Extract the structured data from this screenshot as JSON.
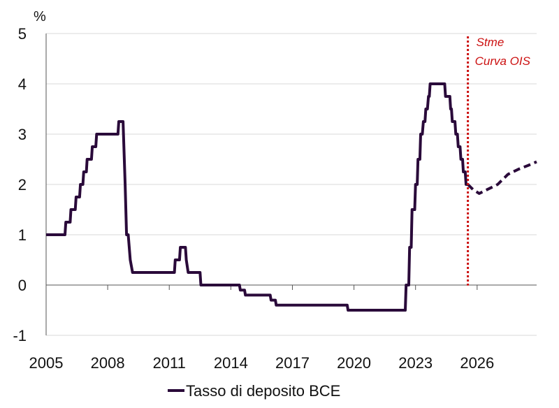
{
  "chart_data": {
    "type": "line",
    "unit_label": "%",
    "colors": {
      "series": "#2a0a3a",
      "forecast_line": "#cc1111",
      "annotation": "#cc1111",
      "grid": "#d9d9d9",
      "axis": "#555555"
    },
    "x_range": [
      2005,
      2028.9
    ],
    "ylim": [
      -1,
      5
    ],
    "grid": "horizontal",
    "x_ticks": [
      {
        "value": 2005,
        "label": "2005"
      },
      {
        "value": 2008,
        "label": "2008"
      },
      {
        "value": 2011,
        "label": "2011"
      },
      {
        "value": 2014,
        "label": "2014"
      },
      {
        "value": 2017,
        "label": "2017"
      },
      {
        "value": 2020,
        "label": "2020"
      },
      {
        "value": 2023,
        "label": "2023"
      },
      {
        "value": 2026,
        "label": "2026"
      }
    ],
    "y_ticks": [
      {
        "value": 5,
        "label": "5"
      },
      {
        "value": 4,
        "label": "4"
      },
      {
        "value": 3,
        "label": "3"
      },
      {
        "value": 2,
        "label": "2"
      },
      {
        "value": 1,
        "label": "1"
      },
      {
        "value": 0,
        "label": "0"
      },
      {
        "value": -1,
        "label": "-1"
      }
    ],
    "legend": {
      "position": "bottom",
      "label": "Tasso di deposito BCE"
    },
    "annotation": {
      "x": 2025.55,
      "lines": [
        "Stme",
        "Curva OIS"
      ]
    },
    "series": [
      {
        "name": "Tasso di deposito BCE",
        "style": "solid",
        "points": [
          [
            2005.0,
            1.0
          ],
          [
            2005.92,
            1.0
          ],
          [
            2005.96,
            1.25
          ],
          [
            2006.17,
            1.25
          ],
          [
            2006.21,
            1.5
          ],
          [
            2006.42,
            1.5
          ],
          [
            2006.46,
            1.75
          ],
          [
            2006.63,
            1.75
          ],
          [
            2006.67,
            2.0
          ],
          [
            2006.79,
            2.0
          ],
          [
            2006.83,
            2.25
          ],
          [
            2006.96,
            2.25
          ],
          [
            2007.0,
            2.5
          ],
          [
            2007.21,
            2.5
          ],
          [
            2007.25,
            2.75
          ],
          [
            2007.42,
            2.75
          ],
          [
            2007.46,
            3.0
          ],
          [
            2008.5,
            3.0
          ],
          [
            2008.54,
            3.25
          ],
          [
            2008.75,
            3.25
          ],
          [
            2008.85,
            2.0
          ],
          [
            2008.92,
            1.0
          ],
          [
            2009.0,
            1.0
          ],
          [
            2009.1,
            0.5
          ],
          [
            2009.21,
            0.25
          ],
          [
            2011.25,
            0.25
          ],
          [
            2011.29,
            0.5
          ],
          [
            2011.5,
            0.5
          ],
          [
            2011.54,
            0.75
          ],
          [
            2011.79,
            0.75
          ],
          [
            2011.83,
            0.5
          ],
          [
            2011.92,
            0.25
          ],
          [
            2012.0,
            0.25
          ],
          [
            2012.5,
            0.25
          ],
          [
            2012.54,
            0.0
          ],
          [
            2014.42,
            0.0
          ],
          [
            2014.46,
            -0.1
          ],
          [
            2014.67,
            -0.1
          ],
          [
            2014.71,
            -0.2
          ],
          [
            2015.92,
            -0.2
          ],
          [
            2015.96,
            -0.3
          ],
          [
            2016.17,
            -0.3
          ],
          [
            2016.21,
            -0.4
          ],
          [
            2019.67,
            -0.4
          ],
          [
            2019.71,
            -0.5
          ],
          [
            2022.5,
            -0.5
          ],
          [
            2022.54,
            0.0
          ],
          [
            2022.67,
            0.0
          ],
          [
            2022.71,
            0.75
          ],
          [
            2022.79,
            0.75
          ],
          [
            2022.83,
            1.5
          ],
          [
            2022.96,
            1.5
          ],
          [
            2023.0,
            2.0
          ],
          [
            2023.08,
            2.0
          ],
          [
            2023.12,
            2.5
          ],
          [
            2023.21,
            2.5
          ],
          [
            2023.25,
            3.0
          ],
          [
            2023.33,
            3.0
          ],
          [
            2023.38,
            3.25
          ],
          [
            2023.46,
            3.25
          ],
          [
            2023.5,
            3.5
          ],
          [
            2023.58,
            3.5
          ],
          [
            2023.63,
            3.75
          ],
          [
            2023.67,
            3.75
          ],
          [
            2023.71,
            4.0
          ],
          [
            2024.42,
            4.0
          ],
          [
            2024.46,
            3.75
          ],
          [
            2024.67,
            3.75
          ],
          [
            2024.71,
            3.5
          ],
          [
            2024.75,
            3.5
          ],
          [
            2024.79,
            3.25
          ],
          [
            2024.92,
            3.25
          ],
          [
            2024.96,
            3.0
          ],
          [
            2025.04,
            3.0
          ],
          [
            2025.08,
            2.75
          ],
          [
            2025.17,
            2.75
          ],
          [
            2025.21,
            2.5
          ],
          [
            2025.29,
            2.5
          ],
          [
            2025.33,
            2.25
          ],
          [
            2025.42,
            2.25
          ],
          [
            2025.46,
            2.0
          ],
          [
            2025.55,
            2.0
          ]
        ]
      },
      {
        "name": "Stme Curva OIS",
        "style": "dashed",
        "points": [
          [
            2025.55,
            2.0
          ],
          [
            2025.8,
            1.9
          ],
          [
            2026.1,
            1.82
          ],
          [
            2026.5,
            1.9
          ],
          [
            2027.0,
            2.0
          ],
          [
            2027.5,
            2.2
          ],
          [
            2028.0,
            2.3
          ],
          [
            2028.5,
            2.38
          ],
          [
            2028.9,
            2.45
          ]
        ]
      }
    ]
  }
}
